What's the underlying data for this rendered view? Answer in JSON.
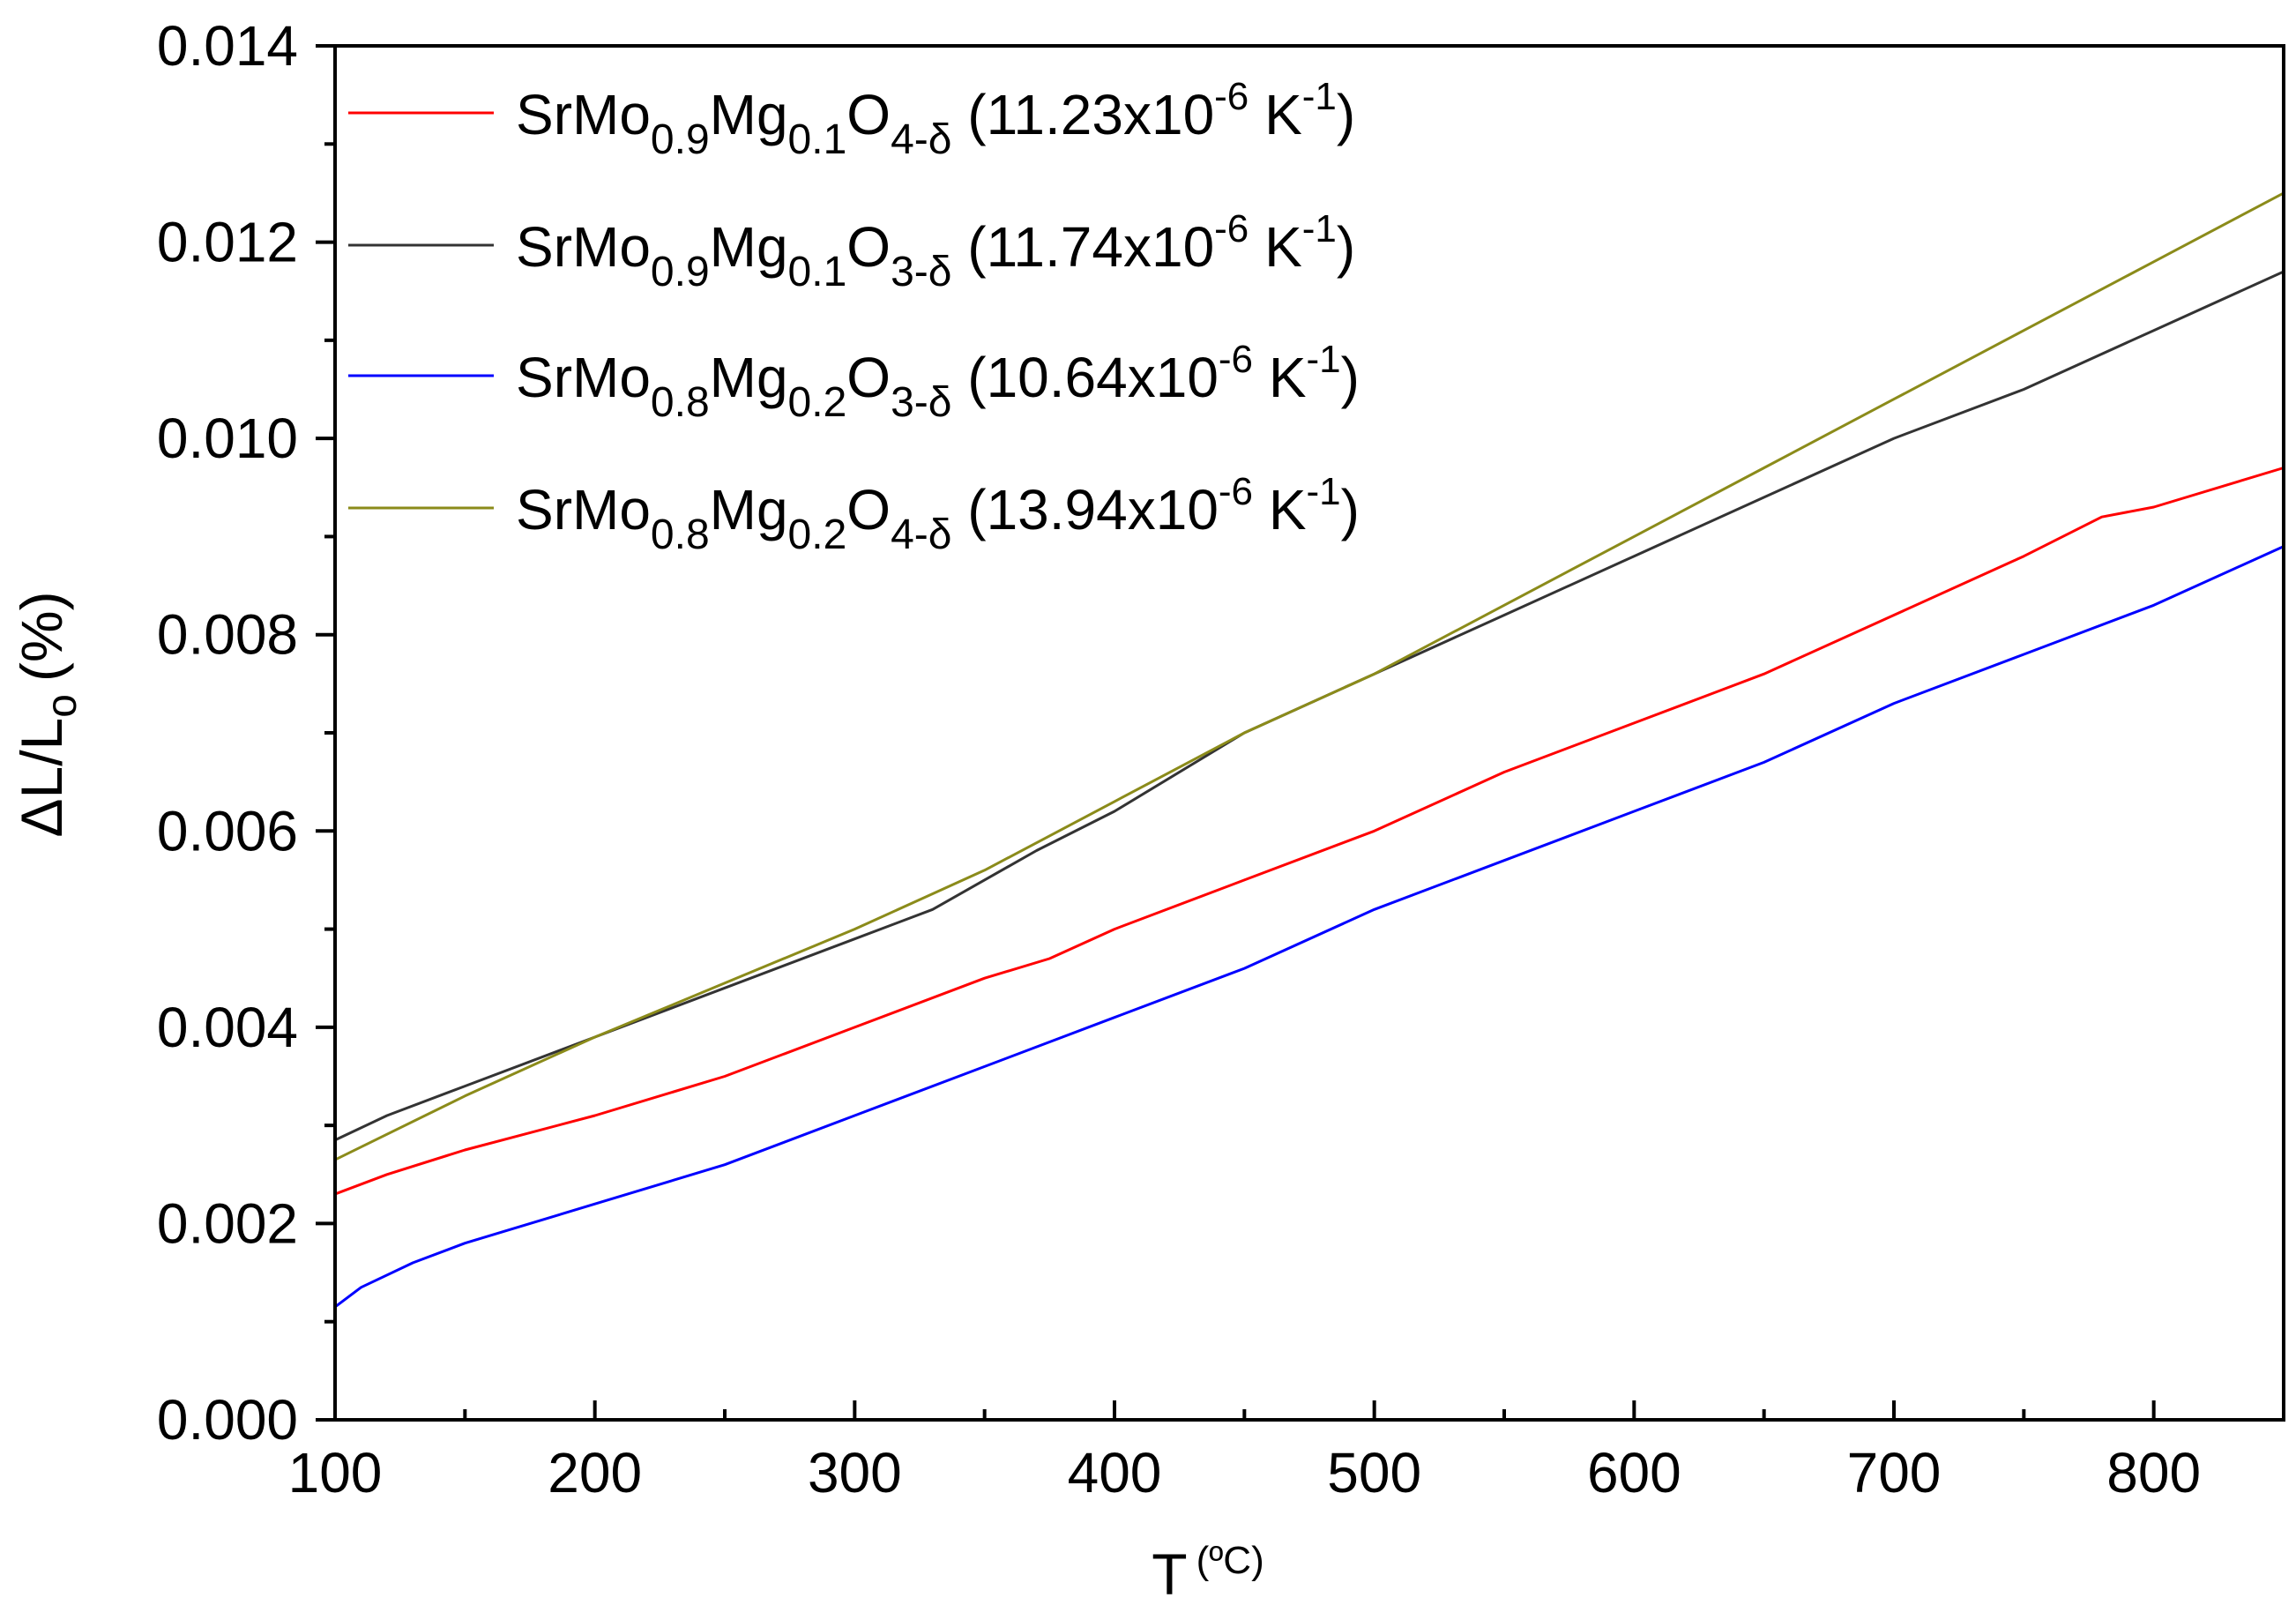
{
  "chart_data": {
    "type": "line",
    "xlabel": "T",
    "xunit": "ºC",
    "ylabel_main": "ΔL/L",
    "ylabel_sub": "o",
    "ylabel_unit": "(%)",
    "xlim": [
      100,
      850
    ],
    "ylim": [
      0,
      0.014
    ],
    "xticks": [
      100,
      200,
      300,
      400,
      500,
      600,
      700,
      800
    ],
    "yticks": [
      0.0,
      0.002,
      0.004,
      0.006,
      0.008,
      0.01,
      0.012,
      0.014
    ],
    "ytick_labels": [
      "0.000",
      "0.002",
      "0.004",
      "0.006",
      "0.008",
      "0.010",
      "0.012",
      "0.014"
    ],
    "legend_position": "top-left",
    "grid": false,
    "series": [
      {
        "name": "SrMo0.9Mg0.1O4-δ (11.23x10-6 K-1)",
        "label_parts": {
          "base": "SrMo",
          "s1": "0.9",
          "mg": "Mg",
          "s2": "0.1",
          "o": "O",
          "s3": "4-δ",
          "coef": " (11.23x10",
          "exp": "-6",
          "unit": " K",
          "uexp": "-1",
          "close": ")"
        },
        "color": "#ff0000",
        "x": [
          100,
          120,
          150,
          200,
          250,
          300,
          350,
          375,
          400,
          450,
          500,
          550,
          600,
          630,
          650,
          700,
          750,
          780,
          800,
          850
        ],
        "y": [
          0.0023,
          0.0025,
          0.00275,
          0.0031,
          0.0035,
          0.004,
          0.0045,
          0.0047,
          0.005,
          0.0055,
          0.006,
          0.0066,
          0.0071,
          0.0074,
          0.0076,
          0.0082,
          0.0088,
          0.0092,
          0.0093,
          0.0097
        ]
      },
      {
        "name": "SrMo0.9Mg0.1O3-δ (11.74x10-6 K-1)",
        "label_parts": {
          "base": "SrMo",
          "s1": "0.9",
          "mg": "Mg",
          "s2": "0.1",
          "o": "O",
          "s3": "3-δ",
          "coef": " (11.74x10",
          "exp": "-6",
          "unit": " K",
          "uexp": "-1",
          "close": ")"
        },
        "color": "#333333",
        "x": [
          100,
          120,
          150,
          200,
          250,
          300,
          330,
          370,
          400,
          450,
          500,
          550,
          600,
          650,
          700,
          750,
          800,
          850
        ],
        "y": [
          0.00285,
          0.0031,
          0.0034,
          0.0039,
          0.0044,
          0.0049,
          0.0052,
          0.0058,
          0.0062,
          0.007,
          0.0076,
          0.0082,
          0.0088,
          0.0094,
          0.01,
          0.0105,
          0.0111,
          0.0117
        ]
      },
      {
        "name": "SrMo0.8Mg0.2O3-δ (10.64x10-6 K-1)",
        "label_parts": {
          "base": "SrMo",
          "s1": "0.8",
          "mg": "Mg",
          "s2": "0.2",
          "o": "O",
          "s3": "3-δ",
          "coef": " (10.64x10",
          "exp": "-6",
          "unit": " K",
          "uexp": "-1",
          "close": ")"
        },
        "color": "#0000ff",
        "x": [
          100,
          110,
          130,
          150,
          200,
          250,
          300,
          350,
          400,
          450,
          500,
          550,
          600,
          650,
          700,
          750,
          800,
          850
        ],
        "y": [
          0.00115,
          0.00135,
          0.0016,
          0.0018,
          0.0022,
          0.0026,
          0.0031,
          0.0036,
          0.0041,
          0.0046,
          0.0052,
          0.0057,
          0.0062,
          0.0067,
          0.0073,
          0.0078,
          0.0083,
          0.0089
        ]
      },
      {
        "name": "SrMo0.8Mg0.2O4-δ (13.94x10-6 K-1)",
        "label_parts": {
          "base": "SrMo",
          "s1": "0.8",
          "mg": "Mg",
          "s2": "0.2",
          "o": "O",
          "s3": "4-δ",
          "coef": " (13.94x10",
          "exp": "-6",
          "unit": " K",
          "uexp": "-1",
          "close": ")"
        },
        "color": "#8b8b1a",
        "x": [
          100,
          150,
          200,
          250,
          300,
          350,
          400,
          450,
          500,
          550,
          600,
          650,
          700,
          750,
          800,
          850
        ],
        "y": [
          0.00265,
          0.0033,
          0.0039,
          0.00445,
          0.005,
          0.0056,
          0.0063,
          0.007,
          0.0076,
          0.0083,
          0.009,
          0.0097,
          0.0104,
          0.0111,
          0.0118,
          0.0125
        ]
      }
    ]
  }
}
